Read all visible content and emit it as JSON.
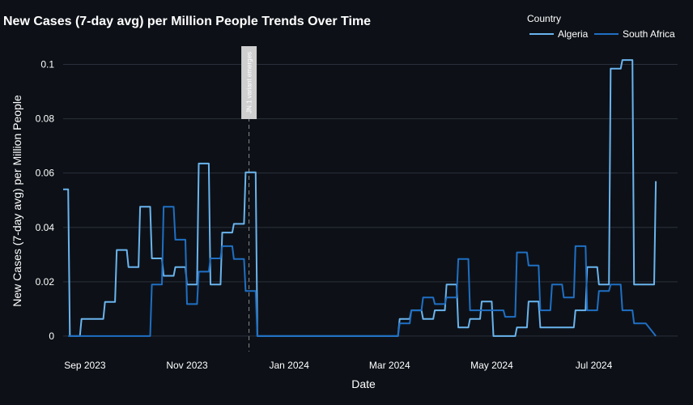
{
  "chart_data": {
    "type": "line",
    "title": "New Cases (7-day avg) per Million People Trends Over Time",
    "xlabel": "Date",
    "ylabel": "New Cases (7-day avg) per Million People",
    "xlim": [
      "2023-08-19",
      "2024-08-20"
    ],
    "ylim": [
      -0.003,
      0.107
    ],
    "grid": true,
    "legend": {
      "title": "Country",
      "placement": "top-right"
    },
    "xticks": [
      {
        "date": "2023-09-01",
        "label": "Sep 2023"
      },
      {
        "date": "2023-11-01",
        "label": "Nov 2023"
      },
      {
        "date": "2024-01-01",
        "label": "Jan 2024"
      },
      {
        "date": "2024-03-01",
        "label": "Mar 2024"
      },
      {
        "date": "2024-05-01",
        "label": "May 2024"
      },
      {
        "date": "2024-07-01",
        "label": "Jul 2024"
      }
    ],
    "yticks": [
      {
        "value": 0,
        "label": "0"
      },
      {
        "value": 0.02,
        "label": "0.02"
      },
      {
        "value": 0.04,
        "label": "0.04"
      },
      {
        "value": 0.06,
        "label": "0.06"
      },
      {
        "value": 0.08,
        "label": "0.08"
      },
      {
        "value": 0.1,
        "label": "0.1"
      }
    ],
    "annotation": {
      "date": "2023-12-08",
      "label": "JN.1 variant emerges",
      "style": "dashed"
    },
    "series": [
      {
        "name": "Algeria",
        "color": "#6ab4ee",
        "points": [
          [
            "2023-08-19",
            0.054
          ],
          [
            "2023-08-22",
            0.054
          ],
          [
            "2023-08-23",
            0
          ],
          [
            "2023-08-29",
            0
          ],
          [
            "2023-08-30",
            0.0063
          ],
          [
            "2023-09-12",
            0.0063
          ],
          [
            "2023-09-13",
            0.0126
          ],
          [
            "2023-09-19",
            0.0126
          ],
          [
            "2023-09-20",
            0.0317
          ],
          [
            "2023-09-26",
            0.0317
          ],
          [
            "2023-09-27",
            0.0254
          ],
          [
            "2023-10-03",
            0.0254
          ],
          [
            "2023-10-04",
            0.0476
          ],
          [
            "2023-10-10",
            0.0476
          ],
          [
            "2023-10-11",
            0.0286
          ],
          [
            "2023-10-17",
            0.0286
          ],
          [
            "2023-10-18",
            0.0222
          ],
          [
            "2023-10-24",
            0.0222
          ],
          [
            "2023-10-25",
            0.0254
          ],
          [
            "2023-10-31",
            0.0254
          ],
          [
            "2023-11-01",
            0.019
          ],
          [
            "2023-11-07",
            0.019
          ],
          [
            "2023-11-08",
            0.0635
          ],
          [
            "2023-11-14",
            0.0635
          ],
          [
            "2023-11-15",
            0.019
          ],
          [
            "2023-11-21",
            0.019
          ],
          [
            "2023-11-22",
            0.0381
          ],
          [
            "2023-11-28",
            0.0381
          ],
          [
            "2023-11-29",
            0.0413
          ],
          [
            "2023-12-05",
            0.0413
          ],
          [
            "2023-12-06",
            0.0603
          ],
          [
            "2023-12-12",
            0.0603
          ],
          [
            "2023-12-13",
            0
          ],
          [
            "2024-03-06",
            0
          ],
          [
            "2024-03-07",
            0.0063
          ],
          [
            "2024-03-13",
            0.0063
          ],
          [
            "2024-03-14",
            0.0095
          ],
          [
            "2024-03-20",
            0.0095
          ],
          [
            "2024-03-21",
            0.0063
          ],
          [
            "2024-03-27",
            0.0063
          ],
          [
            "2024-03-28",
            0.0095
          ],
          [
            "2024-04-03",
            0.0095
          ],
          [
            "2024-04-04",
            0.019
          ],
          [
            "2024-04-10",
            0.019
          ],
          [
            "2024-04-11",
            0.0032
          ],
          [
            "2024-04-17",
            0.0032
          ],
          [
            "2024-04-18",
            0.0063
          ],
          [
            "2024-04-24",
            0.0063
          ],
          [
            "2024-04-25",
            0.0127
          ],
          [
            "2024-05-01",
            0.0127
          ],
          [
            "2024-05-02",
            0
          ],
          [
            "2024-05-15",
            0
          ],
          [
            "2024-05-16",
            0.0032
          ],
          [
            "2024-05-22",
            0.0032
          ],
          [
            "2024-05-23",
            0.0127
          ],
          [
            "2024-05-29",
            0.0127
          ],
          [
            "2024-05-30",
            0.0032
          ],
          [
            "2024-06-19",
            0.0032
          ],
          [
            "2024-06-20",
            0.0095
          ],
          [
            "2024-06-26",
            0.0095
          ],
          [
            "2024-06-27",
            0.0254
          ],
          [
            "2024-07-03",
            0.0254
          ],
          [
            "2024-07-04",
            0.019
          ],
          [
            "2024-07-10",
            0.019
          ],
          [
            "2024-07-11",
            0.0984
          ],
          [
            "2024-07-17",
            0.0984
          ],
          [
            "2024-07-18",
            0.1016
          ],
          [
            "2024-07-24",
            0.1016
          ],
          [
            "2024-07-25",
            0.019
          ],
          [
            "2024-07-31",
            0.019
          ],
          [
            "2024-08-01",
            0.019
          ],
          [
            "2024-08-06",
            0.019
          ],
          [
            "2024-08-07",
            0.057
          ]
        ]
      },
      {
        "name": "South Africa",
        "color": "#1f6fc4",
        "points": [
          [
            "2023-08-22",
            0
          ],
          [
            "2023-10-10",
            0
          ],
          [
            "2023-10-11",
            0.019
          ],
          [
            "2023-10-17",
            0.019
          ],
          [
            "2023-10-18",
            0.0476
          ],
          [
            "2023-10-24",
            0.0476
          ],
          [
            "2023-10-25",
            0.0355
          ],
          [
            "2023-10-31",
            0.0355
          ],
          [
            "2023-11-01",
            0.0118
          ],
          [
            "2023-11-07",
            0.0118
          ],
          [
            "2023-11-08",
            0.0237
          ],
          [
            "2023-11-14",
            0.0237
          ],
          [
            "2023-11-15",
            0.0286
          ],
          [
            "2023-11-21",
            0.0286
          ],
          [
            "2023-11-22",
            0.0331
          ],
          [
            "2023-11-28",
            0.0331
          ],
          [
            "2023-11-29",
            0.0284
          ],
          [
            "2023-12-05",
            0.0284
          ],
          [
            "2023-12-06",
            0.0166
          ],
          [
            "2023-12-12",
            0.0166
          ],
          [
            "2023-12-13",
            0
          ],
          [
            "2024-03-06",
            0
          ],
          [
            "2024-03-07",
            0.0047
          ],
          [
            "2024-03-13",
            0.0047
          ],
          [
            "2024-03-14",
            0.0095
          ],
          [
            "2024-03-20",
            0.0095
          ],
          [
            "2024-03-21",
            0.0142
          ],
          [
            "2024-03-27",
            0.0142
          ],
          [
            "2024-03-28",
            0.0118
          ],
          [
            "2024-04-03",
            0.0118
          ],
          [
            "2024-04-04",
            0.0142
          ],
          [
            "2024-04-10",
            0.0142
          ],
          [
            "2024-04-11",
            0.0284
          ],
          [
            "2024-04-17",
            0.0284
          ],
          [
            "2024-04-18",
            0.0095
          ],
          [
            "2024-05-08",
            0.0095
          ],
          [
            "2024-05-09",
            0.0071
          ],
          [
            "2024-05-15",
            0.0071
          ],
          [
            "2024-05-16",
            0.0308
          ],
          [
            "2024-05-22",
            0.0308
          ],
          [
            "2024-05-23",
            0.026
          ],
          [
            "2024-05-29",
            0.026
          ],
          [
            "2024-05-30",
            0.0095
          ],
          [
            "2024-06-05",
            0.0095
          ],
          [
            "2024-06-06",
            0.019
          ],
          [
            "2024-06-12",
            0.019
          ],
          [
            "2024-06-13",
            0.0142
          ],
          [
            "2024-06-19",
            0.0142
          ],
          [
            "2024-06-20",
            0.0331
          ],
          [
            "2024-06-26",
            0.0331
          ],
          [
            "2024-06-27",
            0.0095
          ],
          [
            "2024-07-03",
            0.0095
          ],
          [
            "2024-07-04",
            0.0166
          ],
          [
            "2024-07-10",
            0.0166
          ],
          [
            "2024-07-11",
            0.019
          ],
          [
            "2024-07-17",
            0.019
          ],
          [
            "2024-07-18",
            0.0095
          ],
          [
            "2024-07-24",
            0.0095
          ],
          [
            "2024-07-25",
            0.0047
          ],
          [
            "2024-07-31",
            0.0047
          ],
          [
            "2024-08-01",
            0.0047
          ],
          [
            "2024-08-07",
            0
          ]
        ]
      }
    ]
  }
}
